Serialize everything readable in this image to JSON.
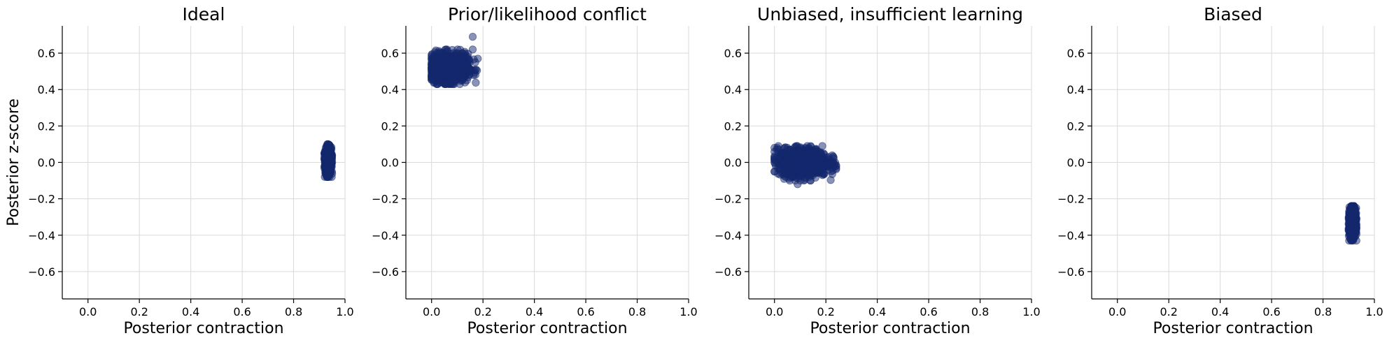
{
  "figure": {
    "y_axis_label": "Posterior z-score",
    "x_axis_label": "Posterior contraction"
  },
  "chart_data": [
    {
      "type": "scatter",
      "title": "Ideal",
      "xlabel": "Posterior contraction",
      "ylabel": "Posterior z-score",
      "xlim": [
        -0.1,
        1.0
      ],
      "ylim": [
        -0.75,
        0.75
      ],
      "xticks": [
        0.0,
        0.2,
        0.4,
        0.6,
        0.8,
        1.0
      ],
      "yticks": [
        -0.6,
        -0.4,
        -0.2,
        0.0,
        0.2,
        0.4,
        0.6
      ],
      "grid": true,
      "color": "#14286e",
      "cluster": {
        "x_range": [
          0.92,
          0.95
        ],
        "y_range": [
          -0.08,
          0.1
        ],
        "x_center": 0.935,
        "y_center": 0.01
      },
      "points": [
        [
          0.93,
          0.09
        ],
        [
          0.935,
          0.1
        ],
        [
          0.925,
          0.06
        ],
        [
          0.94,
          0.07
        ],
        [
          0.93,
          0.04
        ],
        [
          0.935,
          0.02
        ],
        [
          0.925,
          0.0
        ],
        [
          0.94,
          -0.01
        ],
        [
          0.93,
          -0.03
        ],
        [
          0.935,
          -0.05
        ],
        [
          0.93,
          -0.07
        ],
        [
          0.94,
          -0.08
        ],
        [
          0.925,
          -0.06
        ],
        [
          0.945,
          0.03
        ],
        [
          0.92,
          0.03
        ],
        [
          0.935,
          0.05
        ],
        [
          0.93,
          -0.01
        ],
        [
          0.94,
          0.0
        ],
        [
          0.925,
          -0.03
        ],
        [
          0.935,
          0.08
        ]
      ]
    },
    {
      "type": "scatter",
      "title": "Prior/likelihood conflict",
      "xlabel": "Posterior contraction",
      "ylabel": "",
      "xlim": [
        -0.1,
        1.0
      ],
      "ylim": [
        -0.75,
        0.75
      ],
      "xticks": [
        0.0,
        0.2,
        0.4,
        0.6,
        0.8,
        1.0
      ],
      "yticks": [
        -0.6,
        -0.4,
        -0.2,
        0.0,
        0.2,
        0.4,
        0.6
      ],
      "grid": true,
      "color": "#14286e",
      "cluster": {
        "x_range": [
          0.0,
          0.18
        ],
        "y_range": [
          0.43,
          0.62
        ],
        "x_center": 0.07,
        "y_center": 0.52
      },
      "points": [
        [
          0.0,
          0.55
        ],
        [
          0.0,
          0.47
        ],
        [
          0.01,
          0.58
        ],
        [
          0.01,
          0.5
        ],
        [
          0.02,
          0.45
        ],
        [
          0.03,
          0.6
        ],
        [
          0.04,
          0.55
        ],
        [
          0.05,
          0.48
        ],
        [
          0.06,
          0.62
        ],
        [
          0.07,
          0.5
        ],
        [
          0.08,
          0.57
        ],
        [
          0.09,
          0.45
        ],
        [
          0.1,
          0.6
        ],
        [
          0.11,
          0.52
        ],
        [
          0.12,
          0.47
        ],
        [
          0.13,
          0.55
        ],
        [
          0.14,
          0.58
        ],
        [
          0.15,
          0.5
        ],
        [
          0.16,
          0.62
        ],
        [
          0.17,
          0.55
        ],
        [
          0.18,
          0.57
        ],
        [
          0.16,
          0.69
        ],
        [
          0.02,
          0.43
        ],
        [
          0.12,
          0.6
        ]
      ]
    },
    {
      "type": "scatter",
      "title": "Unbiased, insufficient learning",
      "xlabel": "Posterior contraction",
      "ylabel": "",
      "xlim": [
        -0.1,
        1.0
      ],
      "ylim": [
        -0.75,
        0.75
      ],
      "xticks": [
        0.0,
        0.2,
        0.4,
        0.6,
        0.8,
        1.0
      ],
      "yticks": [
        -0.6,
        -0.4,
        -0.2,
        0.0,
        0.2,
        0.4,
        0.6
      ],
      "grid": true,
      "color": "#14286e",
      "cluster": {
        "x_range": [
          0.0,
          0.24
        ],
        "y_range": [
          -0.1,
          0.09
        ],
        "x_center": 0.11,
        "y_center": 0.0
      },
      "points": [
        [
          0.0,
          0.0
        ],
        [
          0.0,
          -0.05
        ],
        [
          0.01,
          0.07
        ],
        [
          0.02,
          -0.03
        ],
        [
          0.03,
          0.05
        ],
        [
          0.04,
          -0.06
        ],
        [
          0.05,
          0.08
        ],
        [
          0.06,
          0.02
        ],
        [
          0.07,
          -0.08
        ],
        [
          0.08,
          0.04
        ],
        [
          0.09,
          -0.12
        ],
        [
          0.1,
          0.06
        ],
        [
          0.11,
          -0.02
        ],
        [
          0.12,
          0.08
        ],
        [
          0.13,
          -0.05
        ],
        [
          0.14,
          0.03
        ],
        [
          0.15,
          -0.07
        ],
        [
          0.16,
          0.07
        ],
        [
          0.17,
          -0.03
        ],
        [
          0.18,
          0.05
        ],
        [
          0.2,
          -0.02
        ],
        [
          0.21,
          0.03
        ],
        [
          0.22,
          -0.05
        ],
        [
          0.24,
          -0.02
        ],
        [
          0.23,
          0.02
        ]
      ]
    },
    {
      "type": "scatter",
      "title": "Biased",
      "xlabel": "Posterior contraction",
      "ylabel": "",
      "xlim": [
        -0.1,
        1.0
      ],
      "ylim": [
        -0.75,
        0.75
      ],
      "xticks": [
        0.0,
        0.2,
        0.4,
        0.6,
        0.8,
        1.0
      ],
      "yticks": [
        -0.6,
        -0.4,
        -0.2,
        0.0,
        0.2,
        0.4,
        0.6
      ],
      "grid": true,
      "color": "#14286e",
      "cluster": {
        "x_range": [
          0.9,
          0.93
        ],
        "y_range": [
          -0.43,
          -0.24
        ],
        "x_center": 0.915,
        "y_center": -0.33
      },
      "points": [
        [
          0.91,
          -0.24
        ],
        [
          0.915,
          -0.26
        ],
        [
          0.905,
          -0.28
        ],
        [
          0.92,
          -0.3
        ],
        [
          0.91,
          -0.32
        ],
        [
          0.915,
          -0.34
        ],
        [
          0.905,
          -0.36
        ],
        [
          0.92,
          -0.38
        ],
        [
          0.91,
          -0.4
        ],
        [
          0.915,
          -0.42
        ],
        [
          0.91,
          -0.43
        ],
        [
          0.925,
          -0.33
        ],
        [
          0.9,
          -0.31
        ],
        [
          0.915,
          -0.29
        ],
        [
          0.91,
          -0.37
        ],
        [
          0.92,
          -0.35
        ],
        [
          0.905,
          -0.33
        ],
        [
          0.915,
          -0.39
        ],
        [
          0.92,
          -0.27
        ],
        [
          0.91,
          -0.35
        ]
      ]
    }
  ]
}
